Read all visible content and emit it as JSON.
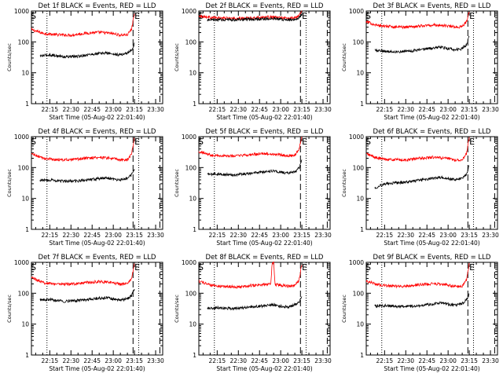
{
  "figure": {
    "rows": 3,
    "cols": 3,
    "grid": false,
    "colors": {
      "events": "#000000",
      "lld": "#ff0000",
      "axes": "#000000",
      "background": "#ffffff"
    }
  },
  "chart_data": [
    {
      "type": "line",
      "title": "Det 1f BLACK = Events, RED = LLD",
      "xlabel": "Start Time (05-Aug-02 22:01:40)",
      "ylabel": "Counts/sec",
      "xlim": [
        "22:02",
        "23:35"
      ],
      "ylim": [
        1,
        1000
      ],
      "yscale": "log",
      "x_tick_labels": [
        "22:15",
        "22:30",
        "22:45",
        "23:00",
        "23:15",
        "23:30"
      ],
      "y_tick_labels": [
        "1",
        "10",
        "100",
        "1000"
      ],
      "markers": [
        "S",
        "E"
      ],
      "markers_at": [
        "22:02",
        "23:15"
      ],
      "vlines": [
        {
          "time": "22:13",
          "style": "dotted"
        },
        {
          "time": "23:14",
          "style": "dashed"
        },
        {
          "time": "23:18",
          "style": "dotted"
        },
        {
          "time": "23:33",
          "style": "dashed"
        }
      ],
      "series": [
        {
          "color": "#ff0000",
          "x": [
            "22:02",
            "22:10",
            "22:20",
            "22:30",
            "22:40",
            "22:50",
            "23:00",
            "23:05",
            "23:10",
            "23:13",
            "23:15"
          ],
          "y": [
            250,
            190,
            170,
            165,
            190,
            205,
            185,
            165,
            170,
            260,
            900
          ]
        },
        {
          "color": "#000000",
          "x": [
            "22:08",
            "22:15",
            "22:25",
            "22:35",
            "22:45",
            "22:55",
            "23:00",
            "23:05",
            "23:10",
            "23:13",
            "23:15"
          ],
          "y": [
            35,
            38,
            33,
            34,
            40,
            44,
            40,
            38,
            44,
            55,
            85
          ]
        }
      ]
    },
    {
      "type": "line",
      "title": "Det 2f BLACK = Events, RED = LLD",
      "xlabel": "Start Time (05-Aug-02 22:01:40)",
      "ylabel": "Counts/sec",
      "xlim": [
        "22:02",
        "23:35"
      ],
      "ylim": [
        1,
        1000
      ],
      "yscale": "log",
      "x_tick_labels": [
        "22:15",
        "22:30",
        "22:45",
        "23:00",
        "23:15",
        "23:30"
      ],
      "y_tick_labels": [
        "1",
        "10",
        "100",
        "1000"
      ],
      "markers": [
        "S",
        "E"
      ],
      "markers_at": [
        "22:02",
        "23:15"
      ],
      "vlines": [
        {
          "time": "22:13",
          "style": "dotted"
        },
        {
          "time": "23:14",
          "style": "dashed"
        },
        {
          "time": "23:18",
          "style": "dotted"
        },
        {
          "time": "23:33",
          "style": "dashed"
        }
      ],
      "series": [
        {
          "color": "#ff0000",
          "x": [
            "22:02",
            "22:10",
            "22:20",
            "22:30",
            "22:40",
            "22:50",
            "23:00",
            "23:05",
            "23:10",
            "23:13",
            "23:15"
          ],
          "y": [
            700,
            620,
            580,
            570,
            600,
            640,
            610,
            580,
            600,
            750,
            1000
          ]
        },
        {
          "color": "#000000",
          "x": [
            "22:08",
            "22:15",
            "22:25",
            "22:35",
            "22:45",
            "22:55",
            "23:00",
            "23:05",
            "23:10",
            "23:13",
            "23:15"
          ],
          "y": [
            500,
            520,
            520,
            530,
            550,
            560,
            540,
            520,
            540,
            600,
            780
          ]
        }
      ]
    },
    {
      "type": "line",
      "title": "Det 3f BLACK = Events, RED = LLD",
      "xlabel": "Start Time (05-Aug-02 22:01:40)",
      "ylabel": "Counts/sec",
      "xlim": [
        "22:02",
        "23:35"
      ],
      "ylim": [
        1,
        1000
      ],
      "yscale": "log",
      "x_tick_labels": [
        "22:15",
        "22:30",
        "22:45",
        "23:00",
        "23:15",
        "23:30"
      ],
      "y_tick_labels": [
        "1",
        "10",
        "100",
        "1000"
      ],
      "markers": [
        "S",
        "E"
      ],
      "markers_at": [
        "22:02",
        "23:15"
      ],
      "vlines": [
        {
          "time": "22:13",
          "style": "dotted"
        },
        {
          "time": "23:14",
          "style": "dashed"
        },
        {
          "time": "23:18",
          "style": "dotted"
        },
        {
          "time": "23:33",
          "style": "dashed"
        }
      ],
      "series": [
        {
          "color": "#ff0000",
          "x": [
            "22:02",
            "22:10",
            "22:20",
            "22:30",
            "22:40",
            "22:50",
            "23:00",
            "23:05",
            "23:10",
            "23:13",
            "23:15"
          ],
          "y": [
            450,
            340,
            310,
            300,
            330,
            350,
            330,
            300,
            310,
            450,
            950
          ]
        },
        {
          "color": "#000000",
          "x": [
            "22:08",
            "22:15",
            "22:25",
            "22:35",
            "22:45",
            "22:55",
            "23:00",
            "23:05",
            "23:10",
            "23:13",
            "23:15"
          ],
          "y": [
            55,
            50,
            48,
            52,
            60,
            68,
            60,
            55,
            60,
            80,
            160
          ]
        }
      ]
    },
    {
      "type": "line",
      "title": "Det 4f BLACK = Events, RED = LLD",
      "xlabel": "Start Time (05-Aug-02 22:01:40)",
      "ylabel": "Counts/sec",
      "xlim": [
        "22:02",
        "23:35"
      ],
      "ylim": [
        1,
        1000
      ],
      "yscale": "log",
      "x_tick_labels": [
        "22:15",
        "22:30",
        "22:45",
        "23:00",
        "23:15",
        "23:30"
      ],
      "y_tick_labels": [
        "1",
        "10",
        "100",
        "1000"
      ],
      "markers": [
        "S",
        "E"
      ],
      "markers_at": [
        "22:02",
        "23:15"
      ],
      "vlines": [
        {
          "time": "22:13",
          "style": "dotted"
        },
        {
          "time": "23:14",
          "style": "dashed"
        },
        {
          "time": "23:18",
          "style": "dotted"
        },
        {
          "time": "23:33",
          "style": "dashed"
        }
      ],
      "series": [
        {
          "color": "#ff0000",
          "x": [
            "22:02",
            "22:10",
            "22:20",
            "22:30",
            "22:40",
            "22:50",
            "23:00",
            "23:05",
            "23:10",
            "23:13",
            "23:15"
          ],
          "y": [
            280,
            200,
            180,
            175,
            200,
            215,
            195,
            175,
            180,
            280,
            950
          ]
        },
        {
          "color": "#000000",
          "x": [
            "22:08",
            "22:15",
            "22:25",
            "22:35",
            "22:45",
            "22:55",
            "23:00",
            "23:05",
            "23:10",
            "23:13",
            "23:15"
          ],
          "y": [
            38,
            40,
            36,
            37,
            42,
            46,
            42,
            40,
            46,
            58,
            95
          ]
        }
      ]
    },
    {
      "type": "line",
      "title": "Det 5f BLACK = Events, RED = LLD",
      "xlabel": "Start Time (05-Aug-02 22:01:40)",
      "ylabel": "Counts/sec",
      "xlim": [
        "22:02",
        "23:35"
      ],
      "ylim": [
        1,
        1000
      ],
      "yscale": "log",
      "x_tick_labels": [
        "22:15",
        "22:30",
        "22:45",
        "23:00",
        "23:15",
        "23:30"
      ],
      "y_tick_labels": [
        "1",
        "10",
        "100",
        "1000"
      ],
      "markers": [
        "S",
        "E"
      ],
      "markers_at": [
        "22:02",
        "23:15"
      ],
      "vlines": [
        {
          "time": "22:13",
          "style": "dotted"
        },
        {
          "time": "23:14",
          "style": "dashed"
        },
        {
          "time": "23:18",
          "style": "dotted"
        },
        {
          "time": "23:33",
          "style": "dashed"
        }
      ],
      "series": [
        {
          "color": "#ff0000",
          "x": [
            "22:02",
            "22:10",
            "22:20",
            "22:30",
            "22:40",
            "22:50",
            "23:00",
            "23:05",
            "23:10",
            "23:13",
            "23:15"
          ],
          "y": [
            330,
            260,
            235,
            240,
            265,
            280,
            260,
            240,
            250,
            400,
            950
          ]
        },
        {
          "color": "#000000",
          "x": [
            "22:08",
            "22:15",
            "22:25",
            "22:35",
            "22:45",
            "22:55",
            "23:00",
            "23:05",
            "23:10",
            "23:13",
            "23:15"
          ],
          "y": [
            60,
            62,
            58,
            62,
            70,
            78,
            70,
            66,
            72,
            95,
            190
          ]
        }
      ]
    },
    {
      "type": "line",
      "title": "Det 6f BLACK = Events, RED = LLD",
      "xlabel": "Start Time (05-Aug-02 22:01:40)",
      "ylabel": "Counts/sec",
      "xlim": [
        "22:02",
        "23:35"
      ],
      "ylim": [
        1,
        1000
      ],
      "yscale": "log",
      "x_tick_labels": [
        "22:15",
        "22:30",
        "22:45",
        "23:00",
        "23:15",
        "23:30"
      ],
      "y_tick_labels": [
        "1",
        "10",
        "100",
        "1000"
      ],
      "markers": [
        "S",
        "E"
      ],
      "markers_at": [
        "22:02",
        "23:15"
      ],
      "vlines": [
        {
          "time": "22:13",
          "style": "dotted"
        },
        {
          "time": "23:14",
          "style": "dashed"
        },
        {
          "time": "23:18",
          "style": "dotted"
        },
        {
          "time": "23:33",
          "style": "dashed"
        }
      ],
      "series": [
        {
          "color": "#ff0000",
          "x": [
            "22:02",
            "22:10",
            "22:20",
            "22:30",
            "22:40",
            "22:50",
            "23:00",
            "23:05",
            "23:10",
            "23:13",
            "23:15"
          ],
          "y": [
            280,
            200,
            180,
            175,
            200,
            215,
            195,
            175,
            180,
            280,
            950
          ]
        },
        {
          "color": "#000000",
          "x": [
            "22:08",
            "22:15",
            "22:25",
            "22:35",
            "22:45",
            "22:55",
            "23:00",
            "23:05",
            "23:10",
            "23:13",
            "23:15"
          ],
          "y": [
            22,
            30,
            32,
            36,
            42,
            48,
            44,
            40,
            46,
            60,
            120
          ]
        }
      ]
    },
    {
      "type": "line",
      "title": "Det 7f BLACK = Events, RED = LLD",
      "xlabel": "Start Time (05-Aug-02 22:01:40)",
      "ylabel": "Counts/sec",
      "xlim": [
        "22:02",
        "23:35"
      ],
      "ylim": [
        1,
        1000
      ],
      "yscale": "log",
      "x_tick_labels": [
        "22:15",
        "22:30",
        "22:45",
        "23:00",
        "23:15",
        "23:30"
      ],
      "y_tick_labels": [
        "1",
        "10",
        "100",
        "1000"
      ],
      "markers": [
        "S",
        "E"
      ],
      "markers_at": [
        "22:02",
        "23:15"
      ],
      "vlines": [
        {
          "time": "22:13",
          "style": "dotted"
        },
        {
          "time": "23:14",
          "style": "dashed"
        },
        {
          "time": "23:18",
          "style": "dotted"
        },
        {
          "time": "23:33",
          "style": "dashed"
        }
      ],
      "series": [
        {
          "color": "#ff0000",
          "x": [
            "22:02",
            "22:10",
            "22:20",
            "22:30",
            "22:40",
            "22:50",
            "23:00",
            "23:05",
            "23:10",
            "23:13",
            "23:15"
          ],
          "y": [
            330,
            220,
            200,
            195,
            220,
            240,
            215,
            195,
            200,
            300,
            950
          ]
        },
        {
          "color": "#000000",
          "x": [
            "22:08",
            "22:15",
            "22:25",
            "22:35",
            "22:45",
            "22:55",
            "23:00",
            "23:05",
            "23:10",
            "23:13",
            "23:15"
          ],
          "y": [
            60,
            62,
            55,
            58,
            65,
            72,
            65,
            60,
            66,
            85,
            140
          ]
        }
      ]
    },
    {
      "type": "line",
      "title": "Det 8f BLACK = Events, RED = LLD",
      "xlabel": "Start Time (05-Aug-02 22:01:40)",
      "ylabel": "Counts/sec",
      "xlim": [
        "22:02",
        "23:35"
      ],
      "ylim": [
        1,
        1000
      ],
      "yscale": "log",
      "x_tick_labels": [
        "22:15",
        "22:30",
        "22:45",
        "23:00",
        "23:15",
        "23:30"
      ],
      "y_tick_labels": [
        "1",
        "10",
        "100",
        "1000"
      ],
      "markers": [
        "S",
        "E"
      ],
      "markers_at": [
        "22:02",
        "23:15"
      ],
      "vlines": [
        {
          "time": "22:13",
          "style": "dotted"
        },
        {
          "time": "23:14",
          "style": "dashed"
        },
        {
          "time": "23:18",
          "style": "dotted"
        },
        {
          "time": "23:33",
          "style": "dashed"
        }
      ],
      "series": [
        {
          "color": "#ff0000",
          "x": [
            "22:02",
            "22:10",
            "22:20",
            "22:30",
            "22:40",
            "22:50",
            "22:53",
            "22:54",
            "22:55",
            "22:56",
            "23:00",
            "23:05",
            "23:10",
            "23:13",
            "23:15"
          ],
          "y": [
            250,
            180,
            165,
            160,
            180,
            195,
            195,
            1000,
            1000,
            190,
            185,
            170,
            175,
            260,
            900
          ]
        },
        {
          "color": "#000000",
          "x": [
            "22:08",
            "22:15",
            "22:25",
            "22:35",
            "22:45",
            "22:55",
            "23:00",
            "23:05",
            "23:10",
            "23:13",
            "23:15"
          ],
          "y": [
            32,
            34,
            32,
            34,
            38,
            42,
            38,
            36,
            42,
            52,
            80
          ]
        }
      ]
    },
    {
      "type": "line",
      "title": "Det 9f BLACK = Events, RED = LLD",
      "xlabel": "Start Time (05-Aug-02 22:01:40)",
      "ylabel": "Counts/sec",
      "xlim": [
        "22:02",
        "23:35"
      ],
      "ylim": [
        1,
        1000
      ],
      "yscale": "log",
      "x_tick_labels": [
        "22:15",
        "22:30",
        "22:45",
        "23:00",
        "23:15",
        "23:30"
      ],
      "y_tick_labels": [
        "1",
        "10",
        "100",
        "1000"
      ],
      "markers": [
        "S",
        "E"
      ],
      "markers_at": [
        "22:02",
        "23:15"
      ],
      "vlines": [
        {
          "time": "22:13",
          "style": "dotted"
        },
        {
          "time": "23:14",
          "style": "dashed"
        },
        {
          "time": "23:18",
          "style": "dotted"
        },
        {
          "time": "23:33",
          "style": "dashed"
        }
      ],
      "series": [
        {
          "color": "#ff0000",
          "x": [
            "22:02",
            "22:10",
            "22:20",
            "22:30",
            "22:40",
            "22:50",
            "23:00",
            "23:05",
            "23:10",
            "23:13",
            "23:15"
          ],
          "y": [
            250,
            190,
            170,
            165,
            190,
            205,
            185,
            165,
            170,
            260,
            900
          ]
        },
        {
          "color": "#000000",
          "x": [
            "22:08",
            "22:15",
            "22:25",
            "22:35",
            "22:45",
            "22:55",
            "23:00",
            "23:05",
            "23:10",
            "23:13",
            "23:15"
          ],
          "y": [
            38,
            40,
            36,
            38,
            42,
            48,
            44,
            40,
            46,
            60,
            95
          ]
        }
      ]
    }
  ]
}
